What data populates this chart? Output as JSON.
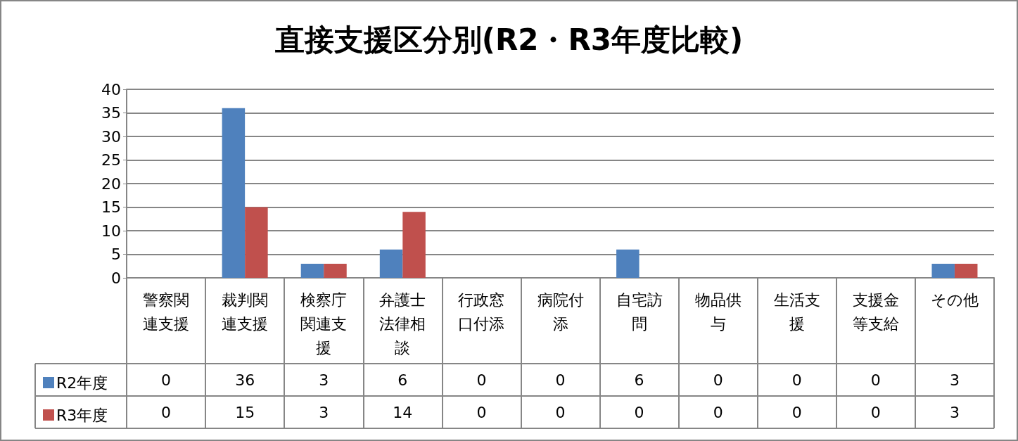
{
  "chart_data": {
    "type": "bar",
    "title": "直接支援区分別(R2・R3年度比較)",
    "categories": [
      "警察関連支援",
      "裁判関連支援",
      "検察庁関連支援",
      "弁護士法律相談",
      "行政窓口付添",
      "病院付添",
      "自宅訪問",
      "物品供与",
      "生活支援",
      "支援金等支給",
      "その他"
    ],
    "series": [
      {
        "name": "R2年度",
        "color": "#4f81bd",
        "values": [
          0,
          36,
          3,
          6,
          0,
          0,
          6,
          0,
          0,
          0,
          3
        ]
      },
      {
        "name": "R3年度",
        "color": "#c0504d",
        "values": [
          0,
          15,
          3,
          14,
          0,
          0,
          0,
          0,
          0,
          0,
          3
        ]
      }
    ],
    "ylim": [
      0,
      40
    ],
    "yticks": [
      0,
      5,
      10,
      15,
      20,
      25,
      30,
      35,
      40
    ],
    "grid": "y",
    "legend": "bottom",
    "data_labels": true
  }
}
